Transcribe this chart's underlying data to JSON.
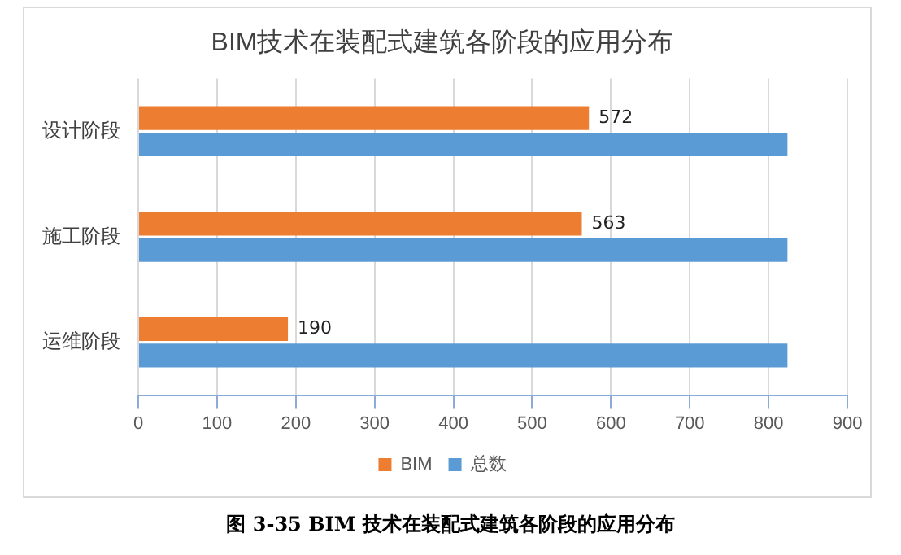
{
  "chart_data": {
    "type": "bar",
    "orientation": "horizontal",
    "title": "BIM技术在装配式建筑各阶段的应用分布",
    "categories": [
      "设计阶段",
      "施工阶段",
      "运维阶段"
    ],
    "series": [
      {
        "name": "BIM",
        "color": "#ed7d31",
        "values": [
          572,
          563,
          190
        ],
        "value_labels": [
          "572",
          "563",
          "190"
        ]
      },
      {
        "name": "总数",
        "color": "#5b9bd5",
        "values": [
          824,
          824,
          824
        ]
      }
    ],
    "xlim": [
      0,
      900
    ],
    "xticks": [
      0,
      100,
      200,
      300,
      400,
      500,
      600,
      700,
      800,
      900
    ],
    "grid": "x",
    "legend": "bottom",
    "annotations": [
      "图 3-35 BIM 技术在装配式建筑各阶段的应用分布"
    ]
  }
}
